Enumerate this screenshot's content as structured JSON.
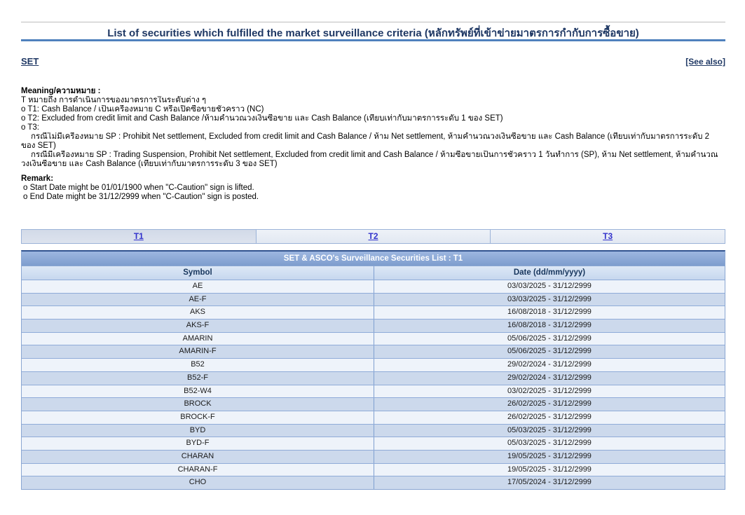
{
  "page": {
    "title": "List of securities which fulfilled the market surveillance criteria (หลักทรัพย์ที่เข้าข่ายมาตรการกำกับการซื้อขาย)"
  },
  "links": {
    "set": "SET",
    "see_also": "[See also]"
  },
  "meaning": {
    "heading": "Meaning/ความหมาย :",
    "lines": [
      {
        "text": "T หมายถึง การดำเนินการของมาตรการในระดับต่าง ๆ",
        "indent": false
      },
      {
        "text": "o T1: Cash Balance / เป็นเครื่องหมาย C หรือเปิดซื้อขายชั่วคราว (NC)",
        "indent": false
      },
      {
        "text": "o T2: Excluded from credit limit and Cash Balance /ห้ามคำนวณวงเงินซื้อขาย และ Cash Balance (เทียบเท่ากับมาตรการระดับ 1 ของ SET)",
        "indent": false
      },
      {
        "text": "o T3:",
        "indent": false
      },
      {
        "text": "กรณีไม่มีเครื่องหมาย SP : Prohibit Net settlement, Excluded from credit limit and Cash Balance / ห้าม Net settlement, ห้ามคำนวณวงเงินซื้อขาย และ Cash Balance (เทียบเท่ากับมาตรการระดับ 2",
        "indent": true
      },
      {
        "text": "ของ SET)",
        "indent": false
      },
      {
        "text": "กรณีมีเครื่องหมาย SP : Trading Suspension, Prohibit Net settlement, Excluded from credit limit and Cash Balance / ห้ามซื้อขายเป็นการชั่วคราว 1 วันทำการ (SP), ห้าม Net settlement, ห้ามคำนวณ",
        "indent": true
      },
      {
        "text": "วงเงินซื้อขาย และ Cash Balance (เทียบเท่ากับมาตรการระดับ 3 ของ SET)",
        "indent": false
      }
    ]
  },
  "remark": {
    "heading": "Remark:",
    "lines": [
      "o Start Date might be 01/01/1900 when \"C-Caution\" sign is lifted.",
      "o End Date might be 31/12/2999 when \"C-Caution\" sign is posted."
    ]
  },
  "tabs": [
    {
      "label": "T1",
      "active": true
    },
    {
      "label": "T2",
      "active": false
    },
    {
      "label": "T3",
      "active": false
    }
  ],
  "table": {
    "title": "SET & ASCO's Surveillance Securities List : T1",
    "columns": [
      "Symbol",
      "Date (dd/mm/yyyy)"
    ],
    "rows": [
      {
        "symbol": "AE",
        "date": "03/03/2025 - 31/12/2999"
      },
      {
        "symbol": "AE-F",
        "date": "03/03/2025 - 31/12/2999"
      },
      {
        "symbol": "AKS",
        "date": "16/08/2018 - 31/12/2999"
      },
      {
        "symbol": "AKS-F",
        "date": "16/08/2018 - 31/12/2999"
      },
      {
        "symbol": "AMARIN",
        "date": "05/06/2025 - 31/12/2999"
      },
      {
        "symbol": "AMARIN-F",
        "date": "05/06/2025 - 31/12/2999"
      },
      {
        "symbol": "B52",
        "date": "29/02/2024 - 31/12/2999"
      },
      {
        "symbol": "B52-F",
        "date": "29/02/2024 - 31/12/2999"
      },
      {
        "symbol": "B52-W4",
        "date": "03/02/2025 - 31/12/2999"
      },
      {
        "symbol": "BROCK",
        "date": "26/02/2025 - 31/12/2999"
      },
      {
        "symbol": "BROCK-F",
        "date": "26/02/2025 - 31/12/2999"
      },
      {
        "symbol": "BYD",
        "date": "05/03/2025 - 31/12/2999"
      },
      {
        "symbol": "BYD-F",
        "date": "05/03/2025 - 31/12/2999"
      },
      {
        "symbol": "CHARAN",
        "date": "19/05/2025 - 31/12/2999"
      },
      {
        "symbol": "CHARAN-F",
        "date": "19/05/2025 - 31/12/2999"
      },
      {
        "symbol": "CHO",
        "date": "17/05/2024 - 31/12/2999"
      }
    ]
  },
  "colors": {
    "title_text": "#1F3864",
    "title_rule": "#4f81bd",
    "link_blue": "#3333cc",
    "table_header_bg": "#8ca9d9",
    "table_colhead_bg": "#cfddf0",
    "row_odd_bg": "#eef3fa",
    "row_even_bg": "#ccd9ec",
    "table_border": "#8aa6d2"
  }
}
